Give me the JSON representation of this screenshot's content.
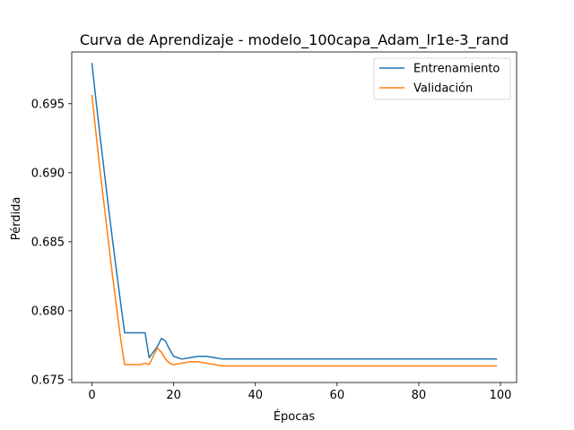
{
  "chart_data": {
    "type": "line",
    "title": "Curva de Aprendizaje - modelo_100capa_Adam_lr1e-3_rand",
    "xlabel": "Épocas",
    "ylabel": "Pérdida",
    "xlim": [
      -4.95,
      103.95
    ],
    "ylim": [
      0.6748,
      0.69875
    ],
    "xticks": [
      0,
      20,
      40,
      60,
      80,
      100
    ],
    "xtick_labels": [
      "0",
      "20",
      "40",
      "60",
      "80",
      "100"
    ],
    "yticks": [
      0.675,
      0.68,
      0.685,
      0.69,
      0.695
    ],
    "ytick_labels": [
      "0.675",
      "0.680",
      "0.685",
      "0.690",
      "0.695"
    ],
    "grid": false,
    "legend_position": "top-right",
    "series": [
      {
        "name": "Entrenamiento",
        "color": "#1f77b4",
        "x": [
          0,
          1,
          2,
          3,
          4,
          5,
          6,
          7,
          8,
          9,
          10,
          11,
          12,
          13,
          14,
          15,
          16,
          17,
          18,
          19,
          20,
          22,
          24,
          26,
          28,
          30,
          32,
          35,
          40,
          45,
          50,
          55,
          60,
          65,
          70,
          75,
          80,
          85,
          90,
          95,
          99
        ],
        "y": [
          0.6979,
          0.6952,
          0.6926,
          0.6901,
          0.6876,
          0.6852,
          0.6829,
          0.6806,
          0.6784,
          0.6784,
          0.6784,
          0.6784,
          0.6784,
          0.6784,
          0.6766,
          0.677,
          0.6774,
          0.678,
          0.6778,
          0.6772,
          0.6767,
          0.6765,
          0.6766,
          0.6767,
          0.6767,
          0.6766,
          0.6765,
          0.6765,
          0.6765,
          0.6765,
          0.6765,
          0.6765,
          0.6765,
          0.6765,
          0.6765,
          0.6765,
          0.6765,
          0.6765,
          0.6765,
          0.6765,
          0.6765
        ]
      },
      {
        "name": "Validación",
        "color": "#ff7f0e",
        "x": [
          0,
          1,
          2,
          3,
          4,
          5,
          6,
          7,
          8,
          9,
          10,
          11,
          12,
          13,
          14,
          15,
          16,
          17,
          18,
          19,
          20,
          22,
          24,
          26,
          28,
          30,
          32,
          35,
          40,
          45,
          50,
          55,
          60,
          65,
          70,
          75,
          80,
          85,
          90,
          95,
          99
        ],
        "y": [
          0.6956,
          0.6928,
          0.6901,
          0.6876,
          0.6851,
          0.6826,
          0.6803,
          0.678,
          0.6761,
          0.6761,
          0.6761,
          0.6761,
          0.6761,
          0.6762,
          0.6761,
          0.6767,
          0.6773,
          0.677,
          0.6765,
          0.6762,
          0.6761,
          0.6762,
          0.6763,
          0.6763,
          0.6762,
          0.6761,
          0.676,
          0.676,
          0.676,
          0.676,
          0.676,
          0.676,
          0.676,
          0.676,
          0.676,
          0.676,
          0.676,
          0.676,
          0.676,
          0.676,
          0.676
        ]
      }
    ]
  }
}
